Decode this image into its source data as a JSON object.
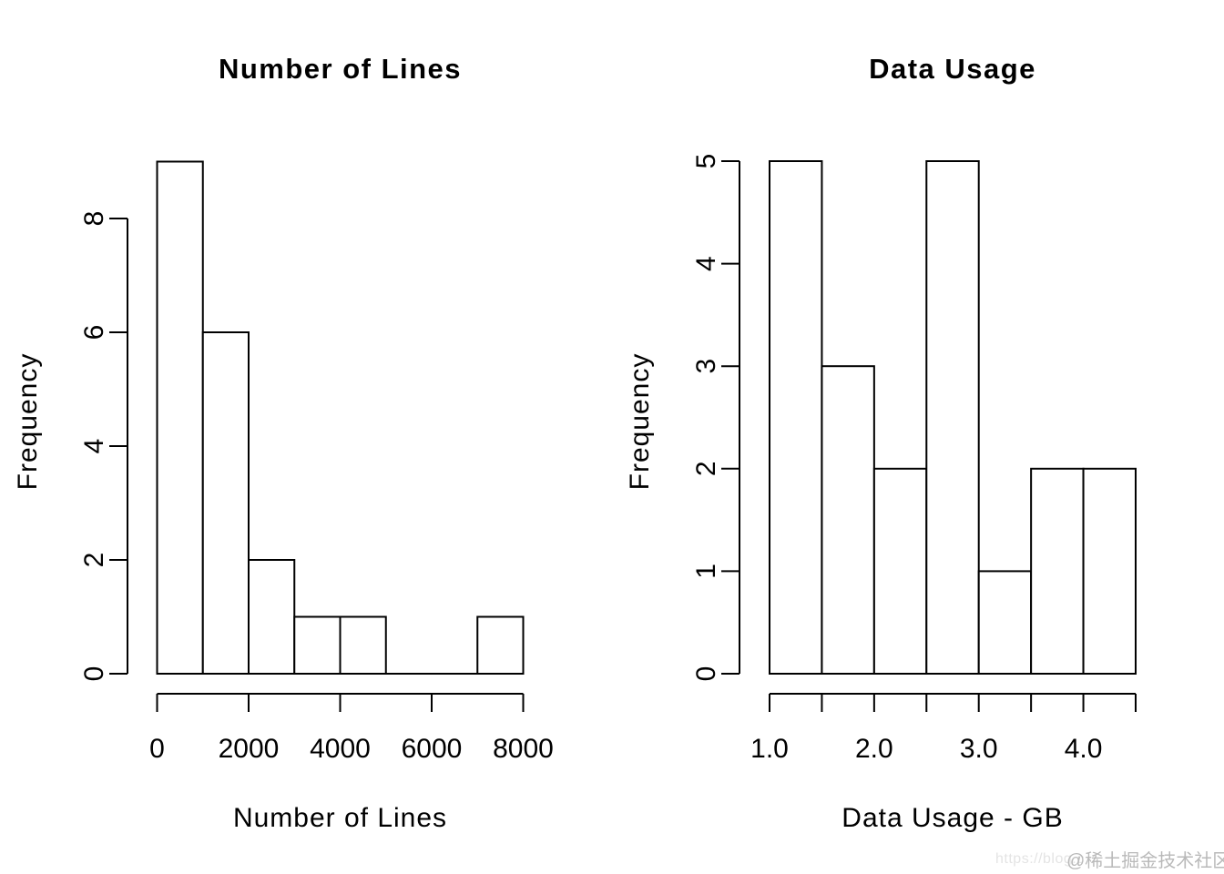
{
  "figure": {
    "background": "#ffffff",
    "foreground": "#000000",
    "panels": 2
  },
  "chart_data": [
    {
      "type": "bar",
      "subtype": "histogram",
      "title": "Number of Lines",
      "xlabel": "Number of Lines",
      "ylabel": "Frequency",
      "bin_edges": [
        0,
        1000,
        2000,
        3000,
        4000,
        5000,
        6000,
        7000,
        8000
      ],
      "counts": [
        9,
        6,
        2,
        1,
        1,
        0,
        0,
        1
      ],
      "x_ticks": [
        0,
        2000,
        4000,
        6000,
        8000
      ],
      "x_tick_labels": [
        "0",
        "2000",
        "4000",
        "6000",
        "8000"
      ],
      "y_ticks": [
        0,
        2,
        4,
        6,
        8
      ],
      "y_tick_labels": [
        "0",
        "2",
        "4",
        "6",
        "8"
      ],
      "xlim": [
        0,
        8000
      ],
      "ylim": [
        0,
        9
      ],
      "bar_fill": "#ffffff",
      "bar_stroke": "#000000",
      "grid": false,
      "legend": false
    },
    {
      "type": "bar",
      "subtype": "histogram",
      "title": "Data Usage",
      "xlabel": "Data Usage - GB",
      "ylabel": "Frequency",
      "bin_edges": [
        1.0,
        1.5,
        2.0,
        2.5,
        3.0,
        3.5,
        4.0,
        4.5
      ],
      "counts": [
        5,
        3,
        2,
        5,
        1,
        2,
        2
      ],
      "x_ticks": [
        1.0,
        1.5,
        2.0,
        2.5,
        3.0,
        3.5,
        4.0,
        4.5
      ],
      "x_tick_labels": [
        "1.0",
        "",
        "2.0",
        "",
        "3.0",
        "",
        "4.0",
        ""
      ],
      "y_ticks": [
        0,
        1,
        2,
        3,
        4,
        5
      ],
      "y_tick_labels": [
        "0",
        "1",
        "2",
        "3",
        "4",
        "5"
      ],
      "xlim": [
        1.0,
        4.5
      ],
      "ylim": [
        0,
        5
      ],
      "bar_fill": "#ffffff",
      "bar_stroke": "#000000",
      "grid": false,
      "legend": false
    }
  ],
  "watermark": {
    "url_fragment": "https://blog.c",
    "handle": "@稀土掘金技术社区",
    "url_color": "#e4e4e4",
    "handle_color": "#b9b9b9"
  }
}
